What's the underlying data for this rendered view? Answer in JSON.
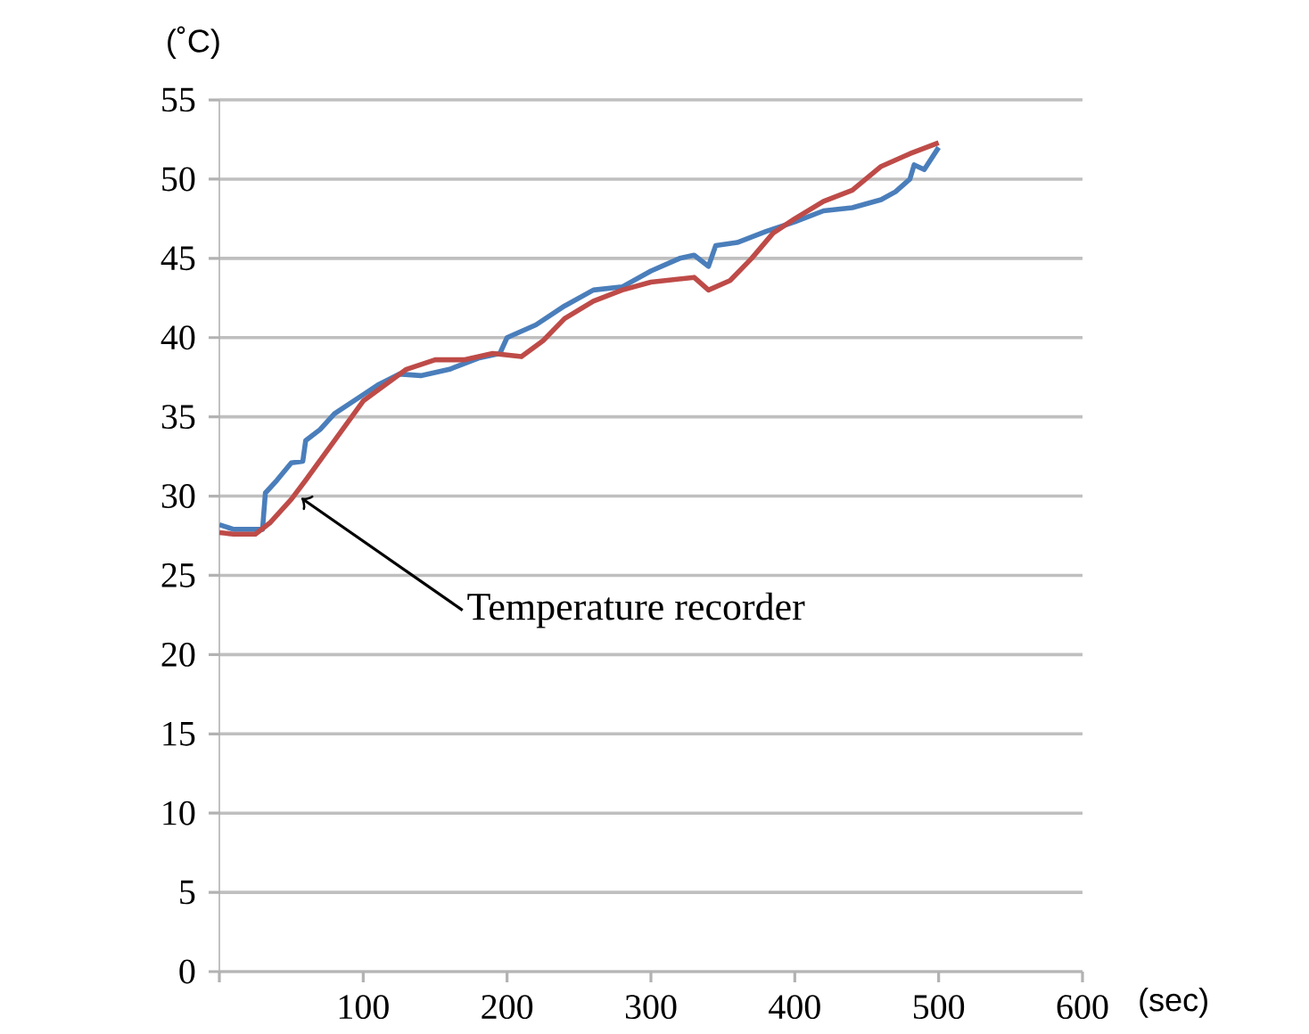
{
  "chart_data": {
    "type": "line",
    "ylabel": "(˚C)",
    "xlabel": "(sec)",
    "xlim": [
      0,
      600
    ],
    "xticks": [
      {
        "value": 0,
        "label": null
      },
      100,
      200,
      300,
      400,
      500,
      600
    ],
    "ylim": [
      0,
      55
    ],
    "yticks": [
      0,
      5,
      10,
      15,
      20,
      25,
      30,
      35,
      40,
      45,
      50,
      55
    ],
    "grid": "y",
    "marker": "none",
    "line_style": "solid",
    "annotations": [
      {
        "text": "Temperature recorder",
        "x": 55,
        "y": 30
      }
    ],
    "series": [
      {
        "color": "#4a7ebb",
        "x": [
          0,
          10,
          30,
          32,
          40,
          50,
          58,
          60,
          70,
          80,
          100,
          110,
          125,
          140,
          160,
          180,
          195,
          200,
          220,
          240,
          260,
          280,
          300,
          320,
          330,
          340,
          345,
          360,
          380,
          400,
          420,
          440,
          460,
          470,
          480,
          483,
          490,
          500
        ],
        "values": [
          28.2,
          27.9,
          27.9,
          30.2,
          31,
          32.1,
          32.2,
          33.5,
          34.2,
          35.2,
          36.4,
          37,
          37.7,
          37.6,
          38,
          38.7,
          39,
          40,
          40.8,
          42,
          43,
          43.2,
          44.2,
          45,
          45.2,
          44.5,
          45.8,
          46,
          46.7,
          47.3,
          48,
          48.2,
          48.7,
          49.2,
          50,
          50.9,
          50.6,
          52
        ]
      },
      {
        "color": "#be4b48",
        "x": [
          0,
          10,
          25,
          35,
          50,
          60,
          80,
          100,
          115,
          130,
          150,
          170,
          190,
          210,
          225,
          240,
          260,
          280,
          300,
          330,
          340,
          355,
          370,
          385,
          400,
          420,
          440,
          460,
          480,
          500
        ],
        "values": [
          27.7,
          27.6,
          27.6,
          28.3,
          29.8,
          31,
          33.5,
          36,
          37,
          38,
          38.6,
          38.6,
          39,
          38.8,
          39.8,
          41.2,
          42.3,
          43,
          43.5,
          43.8,
          43,
          43.6,
          45,
          46.6,
          47.5,
          48.6,
          49.3,
          50.8,
          51.6,
          52.3
        ]
      }
    ]
  }
}
